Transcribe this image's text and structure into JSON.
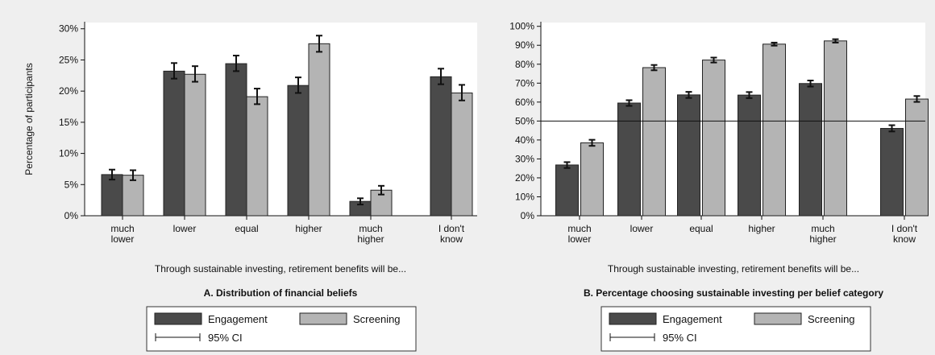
{
  "colors": {
    "background": "#efefef",
    "plot_area": "#ffffff",
    "engagement": "#4a4a4a",
    "screening": "#b4b4b4",
    "error_bar": "#111111"
  },
  "chart_data": [
    {
      "type": "bar",
      "panel": "A",
      "title": "A. Distribution of financial beliefs",
      "xlabel": "Through sustainable investing, retirement benefits will be...",
      "ylabel": "Percentage of participants",
      "categories": [
        [
          "much",
          "lower"
        ],
        [
          "lower"
        ],
        [
          "equal"
        ],
        [
          "higher"
        ],
        [
          "much",
          "higher"
        ],
        [
          "I don't",
          "know"
        ]
      ],
      "yticks": [
        "0%",
        "5%",
        "10%",
        "15%",
        "20%",
        "25%",
        "30%"
      ],
      "ylim": [
        0,
        31
      ],
      "tick_step": 5,
      "grid": false,
      "reference_line": null,
      "series": [
        {
          "name": "Engagement",
          "color": "#4a4a4a",
          "values": [
            6.6,
            23.2,
            24.4,
            20.9,
            2.3,
            22.3
          ],
          "ci_low": [
            5.8,
            22.0,
            23.2,
            19.7,
            1.8,
            21.1
          ],
          "ci_high": [
            7.4,
            24.5,
            25.7,
            22.2,
            2.8,
            23.6
          ]
        },
        {
          "name": "Screening",
          "color": "#b4b4b4",
          "values": [
            6.5,
            22.7,
            19.1,
            27.6,
            4.1,
            19.7
          ],
          "ci_low": [
            5.7,
            21.5,
            17.9,
            26.3,
            3.4,
            18.5
          ],
          "ci_high": [
            7.3,
            24.0,
            20.4,
            28.9,
            4.8,
            21.0
          ]
        }
      ],
      "legend": {
        "placement": "bottom",
        "entries": [
          "Engagement",
          "Screening"
        ],
        "ci_label": "95% CI"
      }
    },
    {
      "type": "bar",
      "panel": "B",
      "title": "B. Percentage choosing sustainable investing per belief category",
      "xlabel": "Through sustainable investing, retirement benefits will be...",
      "ylabel": "",
      "categories": [
        [
          "much",
          "lower"
        ],
        [
          "lower"
        ],
        [
          "equal"
        ],
        [
          "higher"
        ],
        [
          "much",
          "higher"
        ],
        [
          "I don't",
          "know"
        ]
      ],
      "yticks": [
        "0%",
        "10%",
        "20%",
        "30%",
        "40%",
        "50%",
        "60%",
        "70%",
        "80%",
        "90%",
        "100%"
      ],
      "ylim": [
        0,
        102
      ],
      "tick_step": 10,
      "grid": false,
      "reference_line": 50,
      "series": [
        {
          "name": "Engagement",
          "color": "#4a4a4a",
          "values": [
            26.8,
            59.5,
            63.8,
            63.7,
            69.8,
            46.1
          ],
          "ci_low": [
            25.2,
            58.0,
            62.2,
            62.1,
            68.2,
            44.5
          ],
          "ci_high": [
            28.3,
            61.0,
            65.4,
            65.3,
            71.4,
            47.8
          ]
        },
        {
          "name": "Screening",
          "color": "#b4b4b4",
          "values": [
            38.5,
            78.2,
            82.2,
            90.6,
            92.3,
            61.6
          ],
          "ci_low": [
            36.9,
            76.8,
            80.9,
            89.8,
            91.4,
            60.1
          ],
          "ci_high": [
            40.1,
            79.6,
            83.5,
            91.4,
            93.2,
            63.2
          ]
        }
      ],
      "legend": {
        "placement": "bottom",
        "entries": [
          "Engagement",
          "Screening"
        ],
        "ci_label": "95% CI"
      }
    }
  ]
}
